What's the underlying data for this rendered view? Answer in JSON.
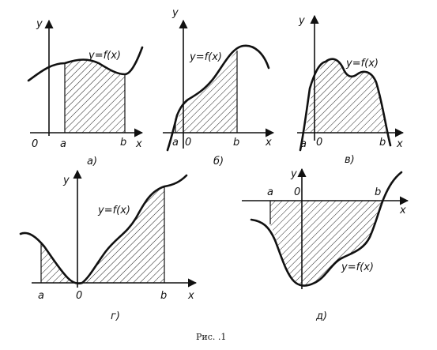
{
  "caption": "Рис. .1",
  "panels": [
    {
      "id": "a",
      "label": "а)",
      "y": "y",
      "x": "x",
      "origin": "0",
      "a": "a",
      "b": "b",
      "func": "y=f(x)"
    },
    {
      "id": "b",
      "label": "б)",
      "y": "y",
      "x": "x",
      "origin": "0",
      "a": "a",
      "b": "b",
      "func": "y=f(x)"
    },
    {
      "id": "v",
      "label": "в)",
      "y": "y",
      "x": "x",
      "origin": "0",
      "a": "a",
      "b": "b",
      "func": "y=f(x)"
    },
    {
      "id": "g",
      "label": "г)",
      "y": "y",
      "x": "x",
      "origin": "0",
      "a": "a",
      "b": "b",
      "func": "y=f(x)"
    },
    {
      "id": "d",
      "label": "д)",
      "y": "y",
      "x": "x",
      "origin": "0",
      "a": "a",
      "b": "b",
      "func": "y=f(x)"
    }
  ]
}
